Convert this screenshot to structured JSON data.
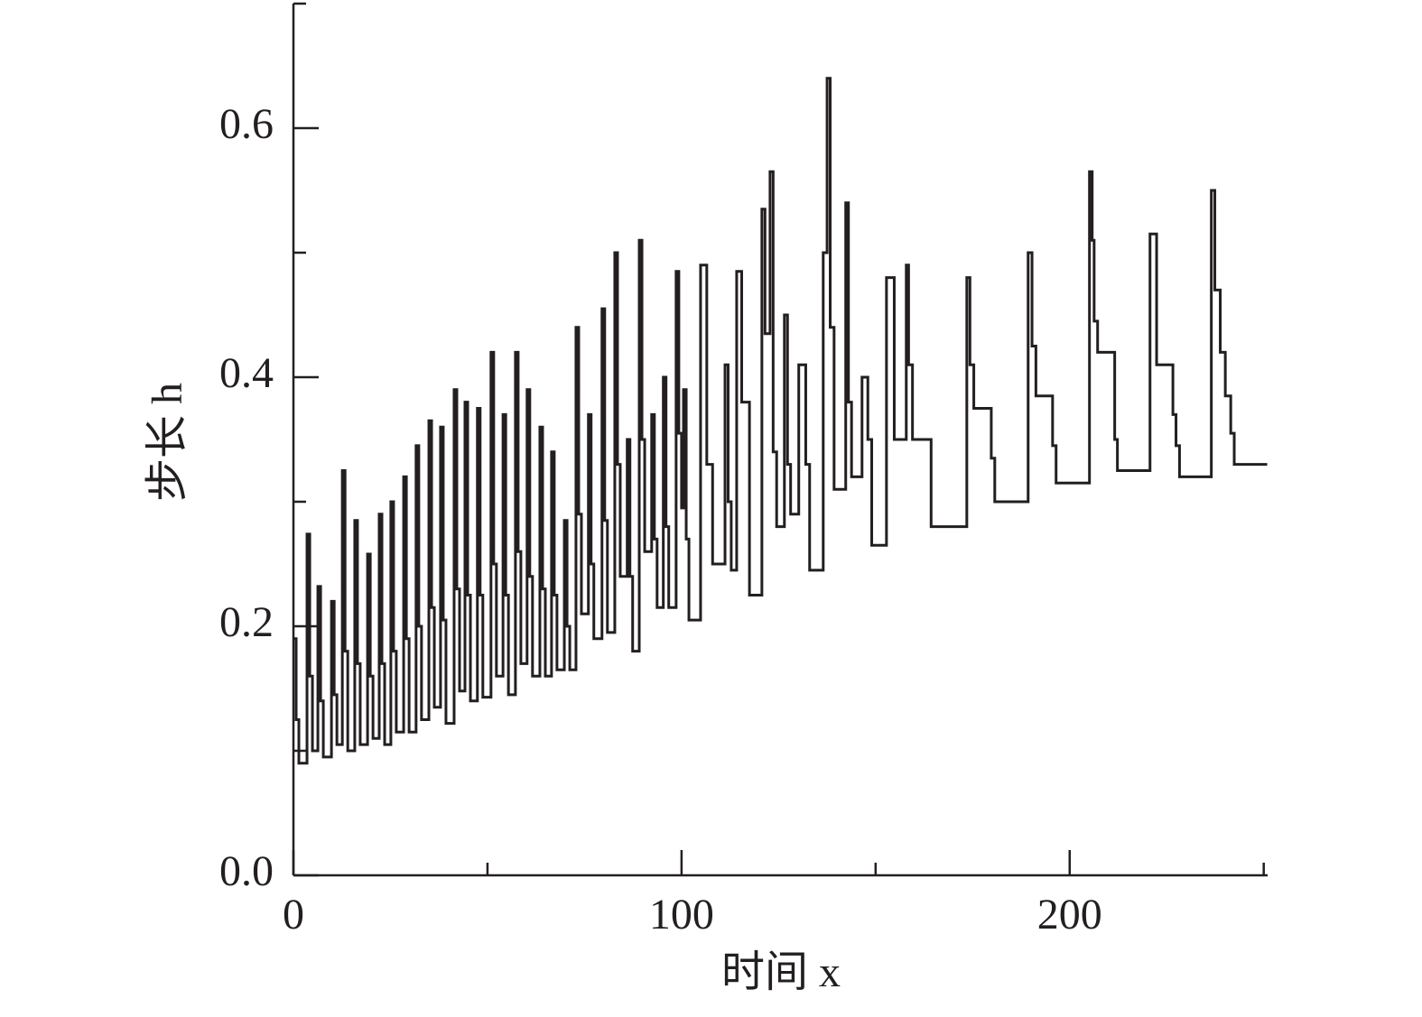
{
  "chart_data": {
    "type": "step",
    "x_label": "时间 x",
    "y_label": "步长 h",
    "xlim": [
      0,
      251
    ],
    "ylim": [
      0,
      0.7
    ],
    "xticks": [
      0,
      100,
      200
    ],
    "xminorticks": [
      50,
      150,
      250
    ],
    "yticks": [
      {
        "value": 0,
        "label": "0.0"
      },
      {
        "value": 0.2,
        "label": "0.2"
      },
      {
        "value": 0.4,
        "label": "0.4"
      },
      {
        "value": 0.6,
        "label": "0.6"
      }
    ],
    "yminorticks": [
      0.1,
      0.3,
      0.5,
      0.7
    ],
    "color": "#231f20",
    "x": [
      0,
      0.7,
      1.4,
      3.5,
      4.2,
      4.9,
      6.3,
      7.0,
      7.7,
      9.8,
      10.5,
      11.2,
      12.6,
      13.3,
      14.0,
      15.8,
      16.5,
      17.2,
      19.1,
      19.8,
      20.5,
      22.1,
      22.8,
      23.5,
      25.1,
      25.8,
      26.5,
      28.4,
      29.1,
      29.8,
      31.6,
      32.3,
      33.0,
      34.9,
      35.6,
      36.3,
      37.9,
      38.6,
      39.3,
      41.4,
      42.1,
      42.8,
      44.2,
      44.9,
      45.6,
      47.4,
      48.1,
      48.8,
      50.9,
      51.6,
      52.3,
      54,
      54.7,
      55.4,
      57.2,
      57.9,
      58.6,
      60.2,
      60.9,
      61.6,
      63.5,
      64.2,
      64.9,
      66.5,
      67.2,
      67.9,
      69.8,
      70.5,
      71.2,
      72.8,
      73.5,
      74.2,
      76,
      76.7,
      77.4,
      79.5,
      80.2,
      80.9,
      82.8,
      83.5,
      84.2,
      86,
      86.7,
      87.4,
      89.1,
      89.8,
      90.5,
      92.3,
      93,
      93.7,
      95.3,
      96,
      96.7,
      98.6,
      99.3,
      100,
      100.5,
      101.2,
      101.9,
      104.9,
      106.5,
      108,
      111.2,
      112,
      112.8,
      114.2,
      115.5,
      117.5,
      120.7,
      121.5,
      122.8,
      123.6,
      124.5,
      126.5,
      127.3,
      128.1,
      130.2,
      132,
      133,
      136.5,
      137.5,
      138.3,
      139.3,
      142.3,
      143,
      143.8,
      146.5,
      148,
      149,
      152.8,
      154.8,
      157.9,
      158.5,
      159.5,
      164.3,
      173.5,
      174.3,
      175.3,
      179.8,
      180.7,
      189.3,
      190.3,
      191.3,
      195.6,
      196.5,
      205.1,
      205.8,
      206.3,
      207.2,
      211.6,
      212.3,
      220.7,
      222.4,
      226.6,
      227.4,
      228.3,
      236.5,
      237.4,
      238.8,
      240.1,
      241.5,
      242.4,
      250.9
    ],
    "values": [
      0.19,
      0.125,
      0.09,
      0.274,
      0.16,
      0.1,
      0.232,
      0.14,
      0.095,
      0.22,
      0.145,
      0.105,
      0.325,
      0.18,
      0.1,
      0.285,
      0.17,
      0.105,
      0.258,
      0.16,
      0.11,
      0.29,
      0.17,
      0.105,
      0.3,
      0.18,
      0.115,
      0.32,
      0.19,
      0.115,
      0.345,
      0.2,
      0.125,
      0.365,
      0.215,
      0.135,
      0.36,
      0.205,
      0.122,
      0.39,
      0.23,
      0.148,
      0.38,
      0.225,
      0.14,
      0.375,
      0.225,
      0.143,
      0.42,
      0.25,
      0.16,
      0.37,
      0.225,
      0.145,
      0.42,
      0.26,
      0.17,
      0.39,
      0.24,
      0.16,
      0.36,
      0.23,
      0.16,
      0.34,
      0.225,
      0.165,
      0.285,
      0.2,
      0.165,
      0.44,
      0.29,
      0.21,
      0.37,
      0.25,
      0.19,
      0.455,
      0.285,
      0.195,
      0.5,
      0.33,
      0.24,
      0.35,
      0.24,
      0.18,
      0.51,
      0.35,
      0.26,
      0.37,
      0.27,
      0.215,
      0.4,
      0.28,
      0.215,
      0.485,
      0.355,
      0.295,
      0.39,
      0.27,
      0.205,
      0.49,
      0.33,
      0.25,
      0.41,
      0.3,
      0.245,
      0.485,
      0.38,
      0.225,
      0.535,
      0.435,
      0.565,
      0.34,
      0.28,
      0.45,
      0.33,
      0.29,
      0.41,
      0.33,
      0.245,
      0.5,
      0.64,
      0.44,
      0.31,
      0.54,
      0.38,
      0.32,
      0.4,
      0.35,
      0.265,
      0.48,
      0.35,
      0.49,
      0.41,
      0.35,
      0.28,
      0.48,
      0.41,
      0.375,
      0.335,
      0.3,
      0.5,
      0.425,
      0.385,
      0.345,
      0.315,
      0.565,
      0.51,
      0.445,
      0.42,
      0.35,
      0.325,
      0.515,
      0.41,
      0.37,
      0.345,
      0.32,
      0.55,
      0.47,
      0.42,
      0.385,
      0.355,
      0.33,
      0.33
    ]
  }
}
